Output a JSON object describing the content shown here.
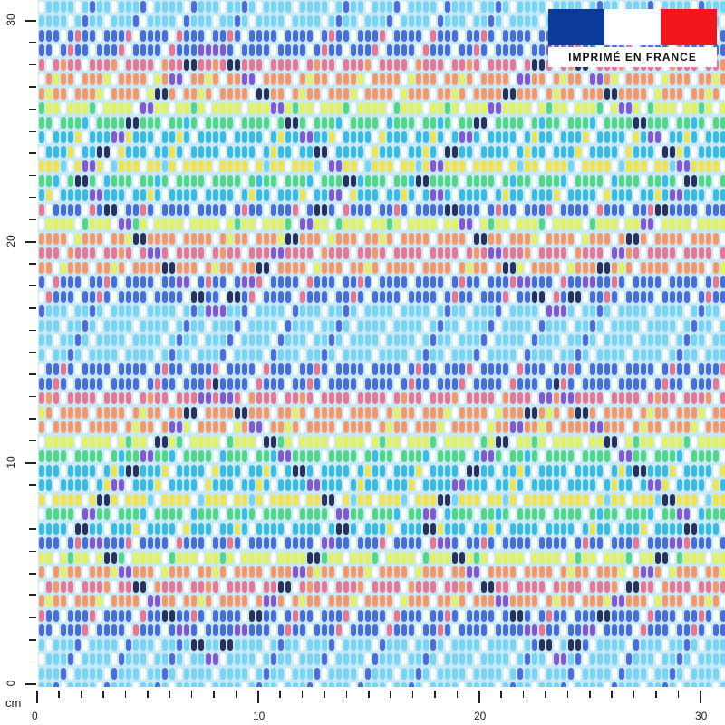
{
  "product": {
    "badge_text": "IMPRIMÉ EN FRANCE",
    "flag_colors": [
      "#0a3b9c",
      "#ffffff",
      "#f2161c"
    ]
  },
  "ruler": {
    "unit": "cm",
    "x_labels": [
      "0",
      "10",
      "20",
      "30"
    ],
    "y_labels": [
      "0",
      "10",
      "20",
      "30"
    ]
  },
  "pattern": {
    "stripe_colors": [
      "#6fd3f5",
      "#3c5fe0",
      "#f06a8a",
      "#ff8f5a",
      "#e7f24a",
      "#44d67a",
      "#27b9e8",
      "#f4e238",
      "#7e49d6",
      "#1b1f4f"
    ]
  }
}
